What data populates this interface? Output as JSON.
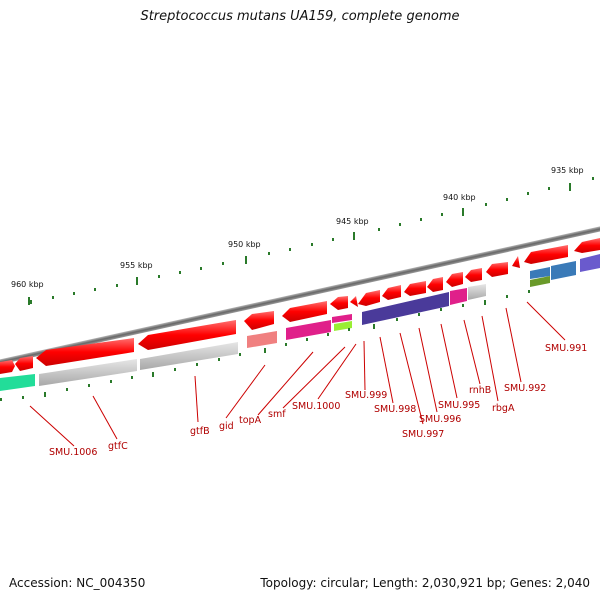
{
  "title": "Streptococcus mutans UA159, complete genome",
  "footer": {
    "accession": "Accession: NC_004350",
    "summary": "Topology: circular; Length: 2,030,921 bp; Genes: 2,040"
  },
  "scale_labels": [
    "960 kbp",
    "955 kbp",
    "950 kbp",
    "945 kbp",
    "940 kbp",
    "935 kbp"
  ],
  "gene_labels": [
    "SMU.1006",
    "gtfC",
    "gtfB",
    "gid",
    "topA",
    "smf",
    "SMU.1000",
    "SMU.999",
    "SMU.998",
    "SMU.997",
    "SMU.996",
    "SMU.995",
    "rnhB",
    "rbgA",
    "SMU.992",
    "SMU.991"
  ],
  "colors": {
    "backbone": "#7a7a7a",
    "gene": "#ff0000",
    "tick": "#2a7a2a",
    "label": "#b00000"
  }
}
